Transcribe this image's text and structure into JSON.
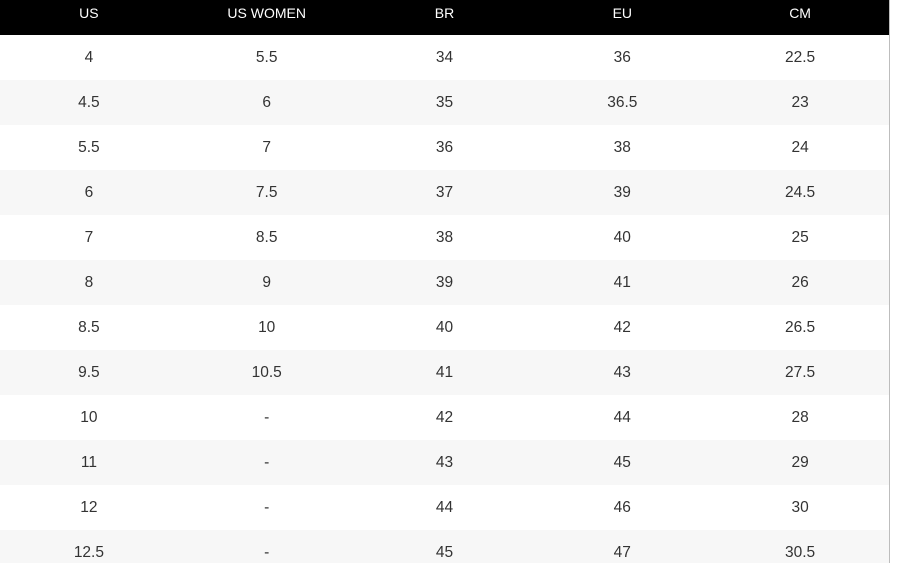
{
  "table": {
    "header": [
      "US",
      "US WOMEN",
      "BR",
      "EU",
      "CM"
    ],
    "rows": [
      [
        "4",
        "5.5",
        "34",
        "36",
        "22.5"
      ],
      [
        "4.5",
        "6",
        "35",
        "36.5",
        "23"
      ],
      [
        "5.5",
        "7",
        "36",
        "38",
        "24"
      ],
      [
        "6",
        "7.5",
        "37",
        "39",
        "24.5"
      ],
      [
        "7",
        "8.5",
        "38",
        "40",
        "25"
      ],
      [
        "8",
        "9",
        "39",
        "41",
        "26"
      ],
      [
        "8.5",
        "10",
        "40",
        "42",
        "26.5"
      ],
      [
        "9.5",
        "10.5",
        "41",
        "43",
        "27.5"
      ],
      [
        "10",
        "-",
        "42",
        "44",
        "28"
      ],
      [
        "11",
        "-",
        "43",
        "45",
        "29"
      ],
      [
        "12",
        "-",
        "44",
        "46",
        "30"
      ],
      [
        "12.5",
        "-",
        "45",
        "47",
        "30.5"
      ]
    ]
  }
}
